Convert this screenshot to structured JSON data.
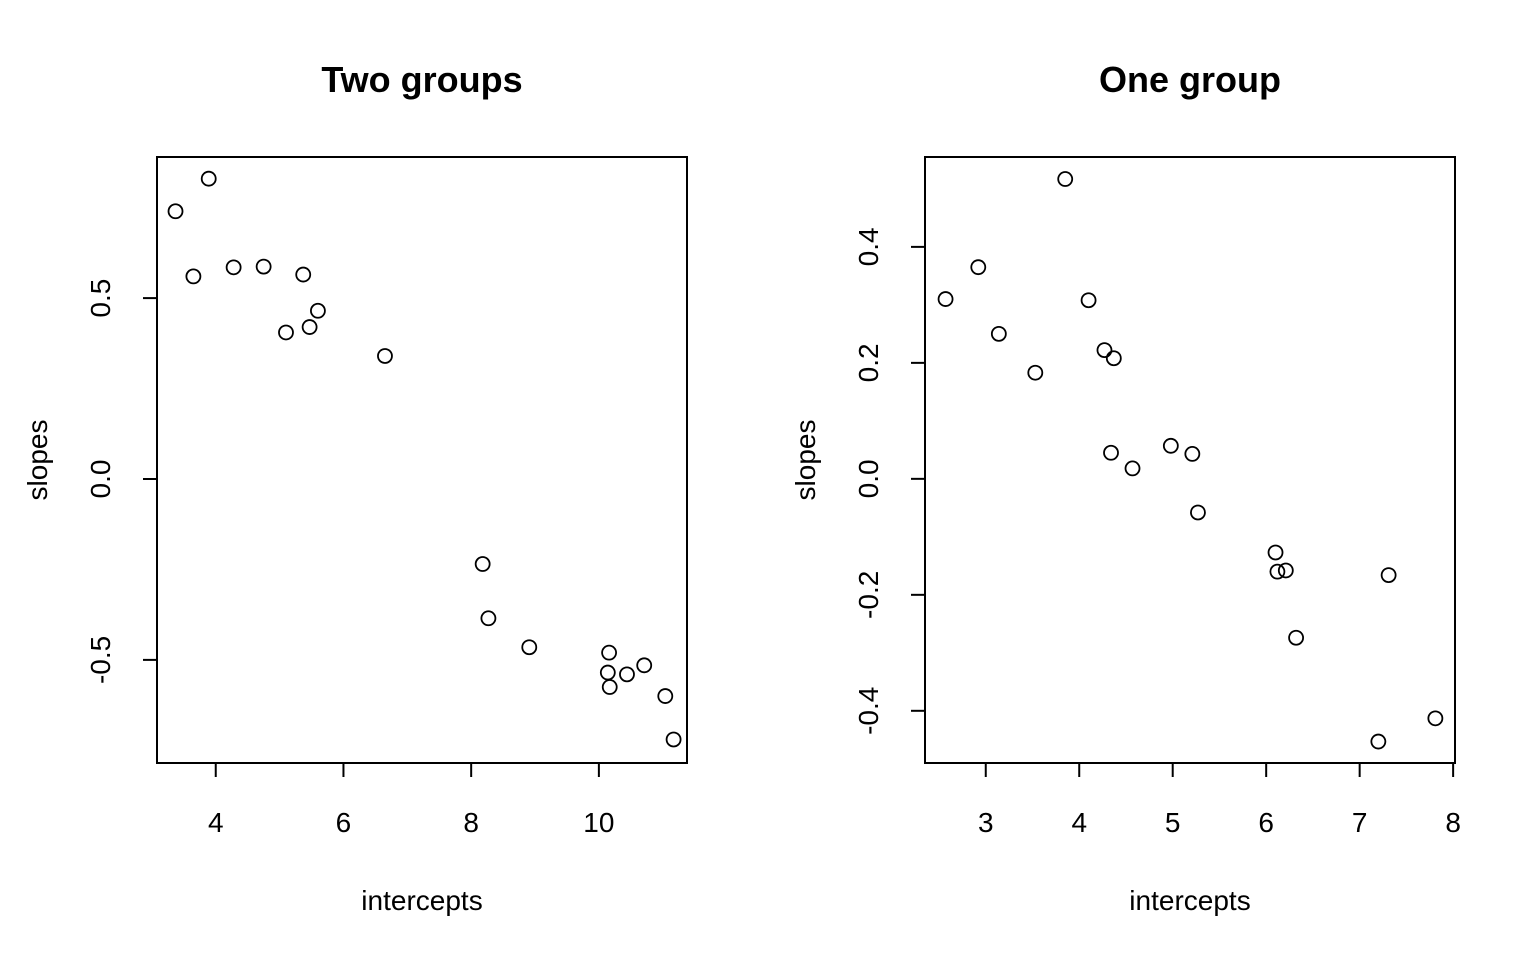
{
  "chart_data": [
    {
      "type": "scatter",
      "title": "Two groups",
      "xlabel": "intercepts",
      "ylabel": "slopes",
      "xlim": [
        3.08,
        11.38
      ],
      "ylim": [
        -0.785,
        0.89
      ],
      "xticks": [
        4,
        6,
        8,
        10
      ],
      "xtick_labels": [
        "4",
        "6",
        "8",
        "10"
      ],
      "yticks": [
        -0.5,
        0.0,
        0.5
      ],
      "ytick_labels": [
        "-0.5",
        "0.0",
        "0.5"
      ],
      "grid": false,
      "points": [
        {
          "x": 3.37,
          "y": 0.74
        },
        {
          "x": 3.89,
          "y": 0.83
        },
        {
          "x": 3.65,
          "y": 0.56
        },
        {
          "x": 4.28,
          "y": 0.585
        },
        {
          "x": 4.75,
          "y": 0.587
        },
        {
          "x": 5.37,
          "y": 0.565
        },
        {
          "x": 5.6,
          "y": 0.465
        },
        {
          "x": 5.1,
          "y": 0.405
        },
        {
          "x": 5.47,
          "y": 0.42
        },
        {
          "x": 6.65,
          "y": 0.34
        },
        {
          "x": 8.18,
          "y": -0.235
        },
        {
          "x": 8.27,
          "y": -0.385
        },
        {
          "x": 8.91,
          "y": -0.465
        },
        {
          "x": 10.16,
          "y": -0.48
        },
        {
          "x": 10.14,
          "y": -0.535
        },
        {
          "x": 10.17,
          "y": -0.575
        },
        {
          "x": 10.44,
          "y": -0.54
        },
        {
          "x": 10.71,
          "y": -0.515
        },
        {
          "x": 11.04,
          "y": -0.6
        },
        {
          "x": 11.17,
          "y": -0.72
        }
      ]
    },
    {
      "type": "scatter",
      "title": "One group",
      "xlabel": "intercepts",
      "ylabel": "slopes",
      "xlim": [
        2.35,
        8.02
      ],
      "ylim": [
        -0.49,
        0.555
      ],
      "xticks": [
        3,
        4,
        5,
        6,
        7,
        8
      ],
      "xtick_labels": [
        "3",
        "4",
        "5",
        "6",
        "7",
        "8"
      ],
      "yticks": [
        -0.4,
        -0.2,
        0.0,
        0.2,
        0.4
      ],
      "ytick_labels": [
        "-0.4",
        "-0.2",
        "0.0",
        "0.2",
        "0.4"
      ],
      "grid": false,
      "points": [
        {
          "x": 2.57,
          "y": 0.31
        },
        {
          "x": 2.92,
          "y": 0.365
        },
        {
          "x": 3.14,
          "y": 0.25
        },
        {
          "x": 3.53,
          "y": 0.183
        },
        {
          "x": 3.85,
          "y": 0.517
        },
        {
          "x": 4.1,
          "y": 0.308
        },
        {
          "x": 4.27,
          "y": 0.222
        },
        {
          "x": 4.37,
          "y": 0.208
        },
        {
          "x": 4.34,
          "y": 0.045
        },
        {
          "x": 4.57,
          "y": 0.018
        },
        {
          "x": 4.98,
          "y": 0.057
        },
        {
          "x": 5.21,
          "y": 0.043
        },
        {
          "x": 5.27,
          "y": -0.058
        },
        {
          "x": 6.1,
          "y": -0.127
        },
        {
          "x": 6.12,
          "y": -0.16
        },
        {
          "x": 6.21,
          "y": -0.158
        },
        {
          "x": 6.32,
          "y": -0.274
        },
        {
          "x": 7.31,
          "y": -0.166
        },
        {
          "x": 7.2,
          "y": -0.453
        },
        {
          "x": 7.81,
          "y": -0.413
        }
      ]
    }
  ]
}
